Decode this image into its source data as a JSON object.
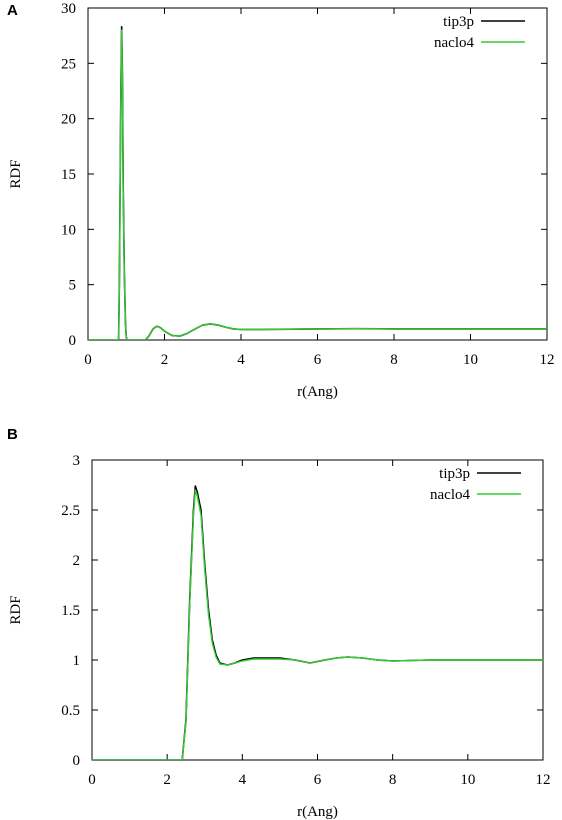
{
  "chart_data": [
    {
      "panel": "A",
      "type": "line",
      "xlabel": "r(Ang)",
      "ylabel": "RDF",
      "xlim": [
        0,
        12
      ],
      "ylim": [
        0,
        30
      ],
      "xticks": [
        "0",
        "2",
        "4",
        "6",
        "8",
        "10",
        "12"
      ],
      "yticks": [
        "0",
        "5",
        "10",
        "15",
        "20",
        "25",
        "30"
      ],
      "legend_position": "top-right",
      "series": [
        {
          "name": "tip3p",
          "color": "#000000",
          "x": [
            0,
            0.8,
            0.82,
            0.86,
            0.88,
            0.9,
            0.92,
            0.95,
            0.98,
            1.0,
            1.02,
            1.5,
            1.6,
            1.7,
            1.8,
            1.9,
            2.0,
            2.2,
            2.4,
            2.6,
            2.8,
            3.0,
            3.2,
            3.4,
            3.6,
            3.8,
            4.0,
            4.5,
            5.0,
            6.0,
            7.0,
            8.0,
            9.0,
            10.0,
            11.0,
            12.0
          ],
          "values": [
            0,
            0,
            5,
            23,
            28.3,
            24,
            14,
            6,
            1.5,
            0.3,
            0,
            0,
            0.4,
            1.0,
            1.25,
            1.1,
            0.8,
            0.4,
            0.35,
            0.6,
            1.0,
            1.35,
            1.45,
            1.35,
            1.15,
            1.0,
            0.95,
            0.95,
            0.97,
            1.0,
            1.02,
            1.0,
            1.0,
            1.0,
            1.0,
            1.0
          ]
        },
        {
          "name": "naclo4",
          "color": "#33cc33",
          "x": [
            0,
            0.8,
            0.82,
            0.86,
            0.88,
            0.9,
            0.92,
            0.95,
            0.98,
            1.0,
            1.02,
            1.5,
            1.6,
            1.7,
            1.8,
            1.9,
            2.0,
            2.2,
            2.4,
            2.6,
            2.8,
            3.0,
            3.2,
            3.4,
            3.6,
            3.8,
            4.0,
            4.5,
            5.0,
            6.0,
            7.0,
            8.0,
            9.0,
            10.0,
            11.0,
            12.0
          ],
          "values": [
            0,
            0,
            4.8,
            22.5,
            28.0,
            23.5,
            13.5,
            5.8,
            1.4,
            0.3,
            0,
            0,
            0.4,
            1.0,
            1.25,
            1.1,
            0.8,
            0.4,
            0.35,
            0.6,
            1.0,
            1.35,
            1.45,
            1.35,
            1.15,
            1.0,
            0.95,
            0.95,
            0.97,
            1.0,
            1.02,
            1.0,
            1.0,
            1.0,
            1.0,
            1.0
          ]
        }
      ]
    },
    {
      "panel": "B",
      "type": "line",
      "xlabel": "r(Ang)",
      "ylabel": "RDF",
      "xlim": [
        0,
        12
      ],
      "ylim": [
        0,
        3
      ],
      "xticks": [
        "0",
        "2",
        "4",
        "6",
        "8",
        "10",
        "12"
      ],
      "yticks": [
        "0",
        "0.5",
        "1",
        "1.5",
        "2",
        "2.5",
        "3"
      ],
      "legend_position": "top-right",
      "series": [
        {
          "name": "tip3p",
          "color": "#000000",
          "x": [
            0,
            2.4,
            2.5,
            2.6,
            2.7,
            2.75,
            2.8,
            2.9,
            3.0,
            3.1,
            3.2,
            3.3,
            3.4,
            3.6,
            3.8,
            4.0,
            4.3,
            4.6,
            5.0,
            5.4,
            5.8,
            6.2,
            6.5,
            6.8,
            7.2,
            7.6,
            8.0,
            9.0,
            10.0,
            11.0,
            12.0
          ],
          "values": [
            0,
            0,
            0.4,
            1.6,
            2.5,
            2.74,
            2.68,
            2.5,
            1.95,
            1.5,
            1.2,
            1.05,
            0.97,
            0.95,
            0.97,
            1.0,
            1.02,
            1.02,
            1.02,
            1.0,
            0.97,
            1.0,
            1.02,
            1.03,
            1.02,
            1.0,
            0.99,
            1.0,
            1.0,
            1.0,
            1.0
          ]
        },
        {
          "name": "naclo4",
          "color": "#33cc33",
          "x": [
            0,
            2.4,
            2.5,
            2.6,
            2.7,
            2.75,
            2.8,
            2.9,
            3.0,
            3.1,
            3.2,
            3.3,
            3.4,
            3.6,
            3.8,
            4.0,
            4.3,
            4.6,
            5.0,
            5.4,
            5.8,
            6.2,
            6.5,
            6.8,
            7.2,
            7.6,
            8.0,
            9.0,
            10.0,
            11.0,
            12.0
          ],
          "values": [
            0,
            0,
            0.38,
            1.55,
            2.45,
            2.7,
            2.64,
            2.45,
            1.9,
            1.45,
            1.17,
            1.03,
            0.96,
            0.95,
            0.97,
            0.99,
            1.01,
            1.01,
            1.01,
            1.0,
            0.97,
            1.0,
            1.02,
            1.03,
            1.02,
            1.0,
            0.99,
            1.0,
            1.0,
            1.0,
            1.0
          ]
        }
      ]
    }
  ]
}
